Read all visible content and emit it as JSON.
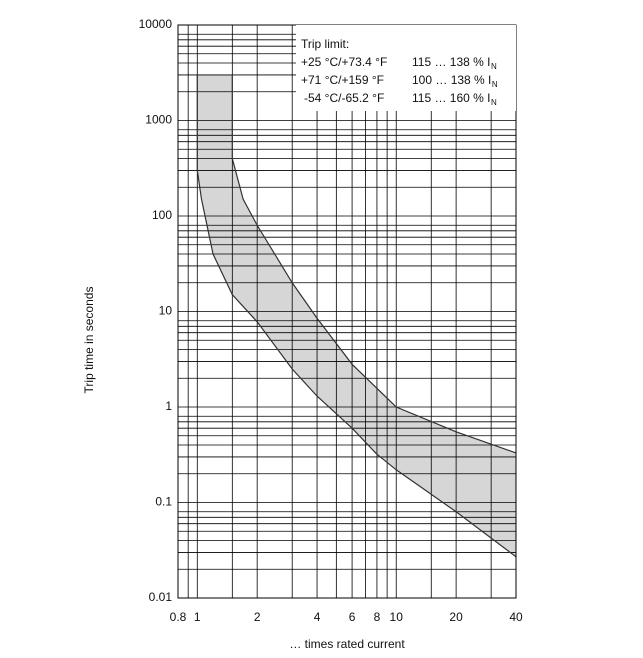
{
  "chart_data": {
    "type": "band",
    "xlabel": "… times rated current",
    "ylabel": "Trip time in seconds",
    "xscale": "log",
    "yscale": "log",
    "grid": true,
    "xlim": [
      0.8,
      40
    ],
    "ylim": [
      0.01,
      10000
    ],
    "xticks": [
      0.8,
      1,
      2,
      4,
      6,
      8,
      10,
      20,
      40
    ],
    "yticks": [
      0.01,
      0.1,
      1,
      10,
      100,
      1000,
      10000
    ],
    "xminor": [
      0.9,
      1.5,
      3,
      5,
      7,
      9,
      15,
      30
    ],
    "yminor": [
      0.02,
      0.03,
      0.04,
      0.05,
      0.06,
      0.07,
      0.08,
      0.2,
      0.3,
      0.4,
      0.5,
      0.6,
      0.7,
      0.8,
      2,
      3,
      4,
      5,
      6,
      7,
      8,
      20,
      30,
      40,
      50,
      60,
      70,
      80,
      200,
      300,
      400,
      500,
      600,
      700,
      800,
      2000,
      3000,
      4000,
      5000,
      6000,
      7000,
      8000
    ],
    "fill": "#d6d6d6",
    "series": [
      {
        "color": "#333333",
        "x": [
          1.5,
          1.5,
          1.7,
          2,
          3,
          4,
          6,
          10,
          20,
          40
        ],
        "values": [
          3000,
          400,
          150,
          80,
          20,
          8.5,
          2.8,
          1,
          0.55,
          0.33
        ]
      },
      {
        "color": "#333333",
        "x": [
          1,
          1,
          1.05,
          1.2,
          1.5,
          2,
          3,
          4,
          6,
          8,
          10,
          20,
          40
        ],
        "values": [
          3000,
          300,
          150,
          40,
          15,
          7.8,
          2.5,
          1.3,
          0.6,
          0.32,
          0.22,
          0.08,
          0.027
        ]
      }
    ],
    "annotation": {
      "title": "Trip limit:",
      "rows": [
        {
          "temp": "+25 °C/+73.4 °F",
          "range": "115 … 138 % I",
          "sub": "N"
        },
        {
          "temp": "+71 °C/+159 °F",
          "range": "100 … 138 % I",
          "sub": "N"
        },
        {
          "temp": "-54 °C/-65.2 °F",
          "range": "115 … 160 % I",
          "sub": "N"
        }
      ]
    }
  }
}
